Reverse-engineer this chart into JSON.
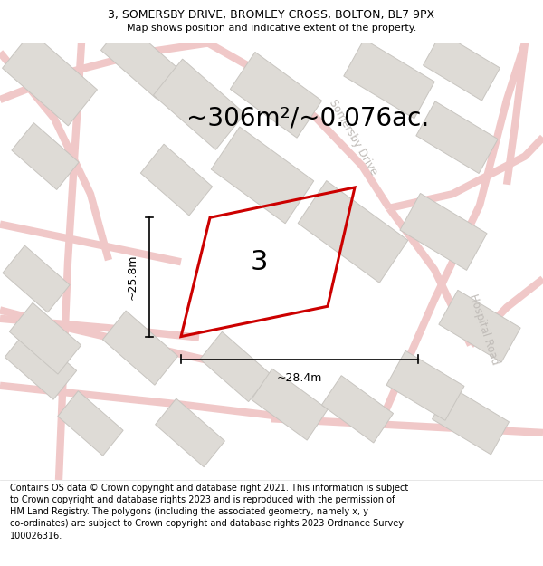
{
  "title_line1": "3, SOMERSBY DRIVE, BROMLEY CROSS, BOLTON, BL7 9PX",
  "title_line2": "Map shows position and indicative extent of the property.",
  "area_text": "~306m²/~0.076ac.",
  "label_number": "3",
  "dim_width": "~28.4m",
  "dim_height": "~25.8m",
  "footer": "Contains OS data © Crown copyright and database right 2021. This information is subject to Crown copyright and database rights 2023 and is reproduced with the permission of HM Land Registry. The polygons (including the associated geometry, namely x, y co-ordinates) are subject to Crown copyright and database rights 2023 Ordnance Survey 100026316.",
  "bg_color": "#f5f3f0",
  "map_bg": "#f2f0ed",
  "plot_color": "#cc0000",
  "road_color": "#f0c8c8",
  "road_lw": 6,
  "building_color": "#dedbd6",
  "building_edge": "#c8c5c0",
  "building_lw": 0.7,
  "road_label_color": "#c0bcb8",
  "road_label_somersby": "Somersby Drive",
  "road_label_hospital": "Hospital Road",
  "title_fontsize": 9,
  "subtitle_fontsize": 8,
  "area_fontsize": 20,
  "number_fontsize": 22,
  "dim_fontsize": 9,
  "footer_fontsize": 7
}
